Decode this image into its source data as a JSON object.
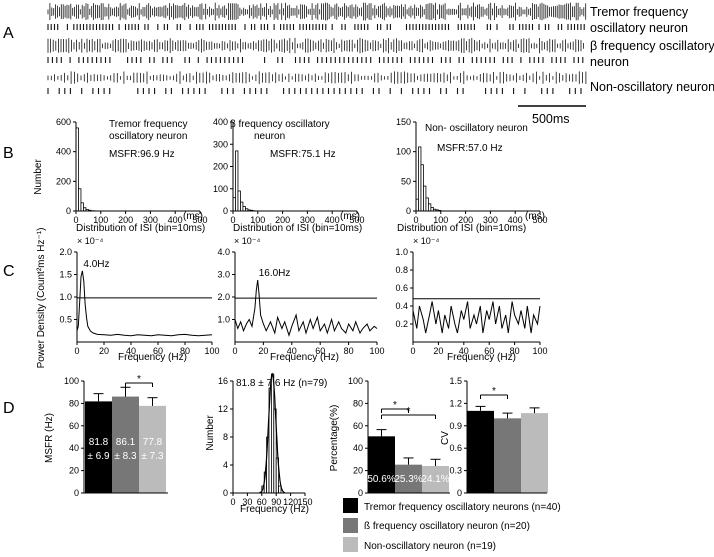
{
  "panel_labels": [
    "A",
    "B",
    "C",
    "D"
  ],
  "panel_a": {
    "tracks": [
      {
        "label_lines": [
          "Tremor frequency",
          "oscillatory neuron"
        ]
      },
      {
        "label_lines": [
          "β frequency oscillatory",
          "neuron"
        ]
      },
      {
        "label_lines": [
          "Non-oscillatory neuron"
        ]
      }
    ],
    "scale_bar_label": "500ms"
  },
  "chart_data": [
    {
      "id": "isi-tremor",
      "type": "bar",
      "annotation_lines": [
        "Tremor frequency",
        "oscillatory neuron"
      ],
      "msfr_label": "MSFR:96.9 Hz",
      "ylabel": "Number",
      "xlabel": "Distribution of ISI (bin=10ms)",
      "x_unit": "(ms)",
      "ylim": [
        0,
        600
      ],
      "yticks": [
        "0",
        "200",
        "400",
        "600"
      ],
      "xlim": [
        0,
        500
      ],
      "xticks": [
        "0",
        "100",
        "200",
        "300",
        "400",
        "500"
      ],
      "bin_width": 10,
      "bin_starts": [
        0,
        10,
        20,
        30,
        40,
        50,
        60,
        70
      ],
      "values": [
        560,
        150,
        55,
        22,
        10,
        5,
        2,
        1
      ]
    },
    {
      "id": "isi-beta",
      "type": "bar",
      "annotation_lines": [
        "β frequency oscillatory",
        "neuron"
      ],
      "msfr_label": "MSFR:75.1 Hz",
      "ylabel": "",
      "xlabel": "Distribution of ISI (bin=10ms)",
      "x_unit": "(ms)",
      "ylim": [
        0,
        400
      ],
      "yticks": [
        "0",
        "100",
        "200",
        "300",
        "400"
      ],
      "xlim": [
        0,
        500
      ],
      "xticks": [
        "0",
        "100",
        "200",
        "300",
        "400",
        "500"
      ],
      "bin_width": 10,
      "bin_starts": [
        0,
        10,
        20,
        30,
        40,
        50,
        60,
        70,
        80
      ],
      "values": [
        60,
        270,
        90,
        40,
        20,
        10,
        5,
        3,
        1
      ]
    },
    {
      "id": "isi-non",
      "type": "bar",
      "annotation_lines": [
        "Non- oscillatory neuron"
      ],
      "msfr_label": "MSFR:57.0 Hz",
      "ylabel": "",
      "xlabel": "Distribution of ISI (bin=10ms)",
      "x_unit": "(ms)",
      "ylim": [
        0,
        150
      ],
      "yticks": [
        "0",
        "50",
        "100",
        "150"
      ],
      "xlim": [
        0,
        500
      ],
      "xticks": [
        "0",
        "100",
        "200",
        "300",
        "400",
        "500"
      ],
      "bin_width": 10,
      "bin_starts": [
        0,
        10,
        20,
        30,
        40,
        50,
        60,
        70,
        80,
        90
      ],
      "values": [
        20,
        108,
        78,
        42,
        22,
        12,
        6,
        3,
        2,
        1
      ]
    },
    {
      "id": "psd-tremor",
      "type": "line",
      "ylabel": "Power Density (Count²ms Hz⁻¹)",
      "exp_label": "× 10⁻⁴",
      "xlabel": "Frequency (Hz)",
      "ylim": [
        0,
        2.0
      ],
      "yticks": [
        {
          "v": 0.5,
          "t": "0.5"
        },
        {
          "v": 1.0,
          "t": "1.0"
        },
        {
          "v": 1.5,
          "t": "1.5"
        },
        {
          "v": 2.0,
          "t": "2.0"
        }
      ],
      "xlim": [
        0,
        100
      ],
      "xticks": [
        "0",
        "20",
        "40",
        "60",
        "80",
        "100"
      ],
      "threshold": 0.98,
      "peak_label": "4.0Hz",
      "peak_x": 4,
      "x": [
        0,
        1,
        2,
        3,
        4,
        5,
        6,
        7,
        8,
        10,
        12,
        15,
        20,
        25,
        30,
        35,
        40,
        45,
        50,
        55,
        60,
        65,
        70,
        75,
        80,
        85,
        90,
        95,
        100
      ],
      "y": [
        0.25,
        0.35,
        0.9,
        1.45,
        1.58,
        1.35,
        0.85,
        0.55,
        0.35,
        0.24,
        0.2,
        0.17,
        0.16,
        0.15,
        0.17,
        0.15,
        0.14,
        0.16,
        0.15,
        0.14,
        0.16,
        0.15,
        0.14,
        0.16,
        0.17,
        0.15,
        0.14,
        0.15,
        0.16
      ]
    },
    {
      "id": "psd-beta",
      "type": "line",
      "ylabel": "",
      "exp_label": "× 10⁻⁴",
      "xlabel": "Frequency (Hz)",
      "ylim": [
        0,
        4.0
      ],
      "yticks": [
        {
          "v": 1.0,
          "t": "1.0"
        },
        {
          "v": 2.0,
          "t": "2.0"
        },
        {
          "v": 3.0,
          "t": "3.0"
        },
        {
          "v": 4.0,
          "t": "4.0"
        }
      ],
      "xlim": [
        0,
        100
      ],
      "xticks": [
        "0",
        "20",
        "40",
        "60",
        "80",
        "100"
      ],
      "threshold": 1.95,
      "peak_label": "16.0Hz",
      "peak_x": 16,
      "x": [
        0,
        2,
        4,
        6,
        8,
        10,
        12,
        14,
        15,
        16,
        17,
        18,
        20,
        22,
        25,
        28,
        30,
        33,
        35,
        38,
        40,
        43,
        45,
        48,
        50,
        53,
        55,
        58,
        60,
        63,
        65,
        68,
        70,
        73,
        75,
        78,
        80,
        83,
        85,
        88,
        90,
        93,
        95,
        98,
        100
      ],
      "y": [
        1.0,
        0.6,
        0.9,
        0.5,
        0.8,
        1.0,
        0.7,
        1.5,
        2.3,
        2.75,
        2.1,
        1.2,
        0.8,
        0.5,
        0.9,
        0.4,
        1.1,
        0.6,
        0.9,
        0.3,
        0.7,
        1.2,
        0.5,
        0.9,
        0.4,
        1.0,
        0.6,
        1.1,
        0.5,
        0.8,
        0.4,
        1.0,
        0.5,
        0.9,
        0.6,
        0.4,
        0.8,
        0.5,
        0.9,
        0.4,
        0.6,
        0.8,
        0.5,
        0.7,
        0.6
      ]
    },
    {
      "id": "psd-non",
      "type": "line",
      "ylabel": "",
      "exp_label": "× 10⁻⁴",
      "xlabel": "Frequency (Hz)",
      "ylim": [
        0,
        1.0
      ],
      "yticks": [
        {
          "v": 0.2,
          "t": "0.2"
        },
        {
          "v": 0.4,
          "t": "0.4"
        },
        {
          "v": 0.6,
          "t": "0.6"
        },
        {
          "v": 0.8,
          "t": "0.8"
        },
        {
          "v": 1.0,
          "t": "1.0"
        }
      ],
      "xlim": [
        0,
        100
      ],
      "xticks": [
        "0",
        "20",
        "40",
        "60",
        "80",
        "100"
      ],
      "threshold": 0.48,
      "x": [
        0,
        3,
        5,
        8,
        10,
        13,
        15,
        18,
        20,
        23,
        25,
        28,
        30,
        33,
        35,
        38,
        40,
        43,
        45,
        48,
        50,
        53,
        55,
        58,
        60,
        63,
        65,
        68,
        70,
        73,
        75,
        78,
        80,
        83,
        85,
        88,
        90,
        93,
        95,
        98,
        100
      ],
      "y": [
        0.35,
        0.15,
        0.4,
        0.25,
        0.1,
        0.3,
        0.45,
        0.2,
        0.35,
        0.1,
        0.3,
        0.15,
        0.4,
        0.2,
        0.1,
        0.35,
        0.25,
        0.45,
        0.15,
        0.3,
        0.2,
        0.4,
        0.1,
        0.35,
        0.25,
        0.45,
        0.2,
        0.4,
        0.15,
        0.3,
        0.1,
        0.45,
        0.3,
        0.2,
        0.35,
        0.15,
        0.4,
        0.1,
        0.3,
        0.2,
        0.4
      ]
    },
    {
      "id": "msfr-bars",
      "type": "bar",
      "ylabel": "MSFR (Hz)",
      "ylim": [
        0,
        100
      ],
      "yticks": [
        "0",
        "20",
        "40",
        "60",
        "80",
        "100"
      ],
      "values": [
        81.8,
        86.1,
        77.8
      ],
      "errors": [
        6.9,
        8.3,
        7.3
      ],
      "value_labels": [
        "81.8",
        "86.1",
        "77.8"
      ],
      "error_labels": [
        "± 6.9",
        "± 8.3",
        "± 7.3"
      ],
      "significance": [
        {
          "from": 1,
          "to": 2,
          "label": "*"
        }
      ]
    },
    {
      "id": "msfr-hist",
      "type": "bar",
      "title": "81.8 ± 7.6 Hz (n=79)",
      "ylabel": "Number",
      "xlabel": "Frequency (Hz)",
      "ylim": [
        0,
        16
      ],
      "yticks": [
        "0",
        "4",
        "8",
        "12",
        "16"
      ],
      "xlim": [
        0,
        150
      ],
      "xticks": [
        "0",
        "30",
        "60",
        "90",
        "120",
        "150"
      ],
      "bin_starts": [
        60,
        65,
        70,
        75,
        80,
        85,
        90,
        95
      ],
      "values": [
        1,
        3,
        8,
        15,
        17,
        12,
        5,
        1
      ],
      "fit": "gaussian",
      "fit_mean": 81.8,
      "fit_sd": 7.6
    },
    {
      "id": "percentage-bars",
      "type": "bar",
      "ylabel": "Percentage(%)",
      "ylim": [
        0,
        100
      ],
      "yticks": [
        "0",
        "20",
        "40",
        "60",
        "80",
        "100"
      ],
      "values": [
        50.6,
        25.3,
        24.1
      ],
      "errors": [
        6,
        6,
        6
      ],
      "value_labels": [
        "50.6%",
        "25.3%",
        "24.1%"
      ],
      "significance": [
        {
          "from": 0,
          "to": 1,
          "label": "*"
        },
        {
          "from": 0,
          "to": 2,
          "label": "*"
        }
      ]
    },
    {
      "id": "cv-bars",
      "type": "bar",
      "ylabel": "CV",
      "ylim": [
        0,
        1.5
      ],
      "yticks": [
        "0",
        "0.3",
        "0.6",
        "0.9",
        "1.2",
        "1.5"
      ],
      "values": [
        1.1,
        1.0,
        1.07
      ],
      "errors": [
        0.06,
        0.07,
        0.07
      ],
      "significance": [
        {
          "from": 0,
          "to": 1,
          "label": "*"
        }
      ]
    }
  ],
  "legend": {
    "items": [
      {
        "label": "Tremor frequency oscillatory neurons (n=40)",
        "color": "#000000"
      },
      {
        "label": "ß frequency oscillatory neuron (n=20)",
        "color": "#777777"
      },
      {
        "label": "Non-oscillatory neuron (n=19)",
        "color": "#bbbbbb"
      }
    ]
  },
  "colors": {
    "group1": "#000000",
    "group2": "#777777",
    "group3": "#bbbbbb",
    "axis": "#000000",
    "trace": "#111111"
  }
}
